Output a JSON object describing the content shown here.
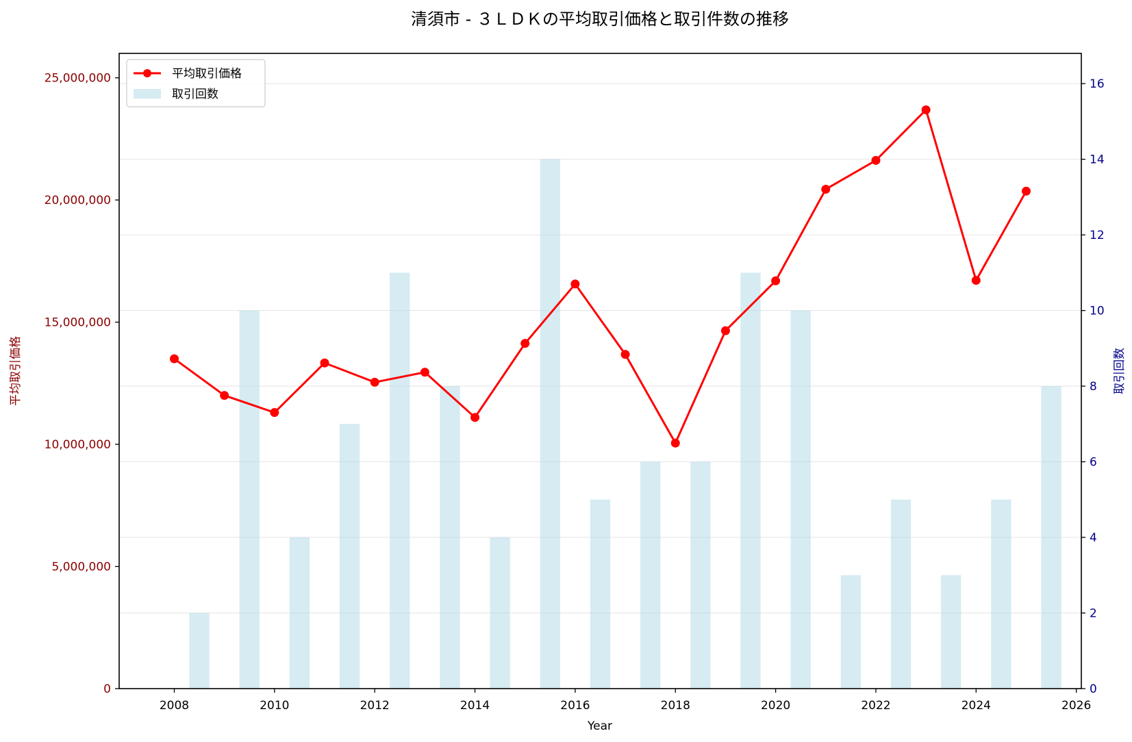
{
  "chart_data": {
    "type": "bar+line",
    "title": "清須市 - ３ＬＤＫの平均取引価格と取引件数の推移",
    "xlabel": "Year",
    "ylabel_left": "平均取引価格",
    "ylabel_right": "取引回数",
    "xlim": [
      2006.9,
      2026.1
    ],
    "ylim_left": [
      0,
      26000000
    ],
    "ylim_right": [
      0,
      16.8
    ],
    "x_ticks": [
      2008,
      2010,
      2012,
      2014,
      2016,
      2018,
      2020,
      2022,
      2024,
      2026
    ],
    "x_tick_labels": [
      "2008",
      "2010",
      "2012",
      "2014",
      "2016",
      "2018",
      "2020",
      "2022",
      "2024",
      "2026"
    ],
    "y_left_ticks": [
      0,
      5000000,
      10000000,
      15000000,
      20000000,
      25000000
    ],
    "y_left_tick_labels": [
      "0",
      "5,000,000",
      "10,000,000",
      "15,000,000",
      "20,000,000",
      "25,000,000"
    ],
    "y_right_ticks": [
      0,
      2,
      4,
      6,
      8,
      10,
      12,
      14,
      16
    ],
    "y_right_tick_labels": [
      "0",
      "2",
      "4",
      "6",
      "8",
      "10",
      "12",
      "14",
      "16"
    ],
    "grid": "horizontal (right axis)",
    "legend_position": "top-left",
    "legend": [
      {
        "label": "平均取引価格",
        "kind": "line"
      },
      {
        "label": "取引回数",
        "kind": "bar"
      }
    ],
    "series": [
      {
        "name": "平均取引価格",
        "axis": "left",
        "kind": "line",
        "color": "#ff0000",
        "x": [
          2008,
          2009,
          2010,
          2011,
          2012,
          2013,
          2014,
          2015,
          2016,
          2017,
          2018,
          2019,
          2020,
          2021,
          2022,
          2023,
          2024,
          2025
        ],
        "values": [
          13500000,
          12000000,
          11300000,
          13330000,
          12540000,
          12950000,
          11100000,
          14130000,
          16560000,
          13680000,
          10050000,
          14650000,
          16690000,
          20440000,
          21620000,
          23690000,
          16710000,
          20360000
        ]
      },
      {
        "name": "取引回数",
        "axis": "right",
        "kind": "bar",
        "color": "#add8e6",
        "x": [
          2008,
          2009,
          2010,
          2011,
          2012,
          2013,
          2014,
          2015,
          2016,
          2017,
          2018,
          2019,
          2020,
          2021,
          2022,
          2023,
          2024,
          2025
        ],
        "values": [
          2,
          10,
          4,
          7,
          11,
          8,
          4,
          14,
          5,
          6,
          6,
          11,
          10,
          3,
          5,
          3,
          5,
          8
        ]
      }
    ],
    "colors": {
      "left_axis": "#8b0000",
      "right_axis": "#00008b",
      "line": "#ff0000",
      "bar": "#add8e6",
      "grid": "#dddddd"
    }
  }
}
